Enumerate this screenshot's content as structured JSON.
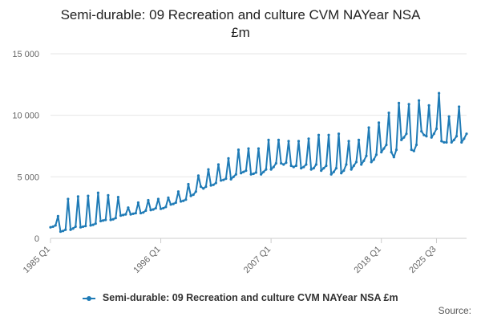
{
  "chart_data": {
    "type": "line",
    "title_lines": [
      "Semi-durable: 09 Recreation and culture CVM NAYear NSA",
      "£m"
    ],
    "xlabel": "",
    "ylabel": "",
    "ylim": [
      0,
      15000
    ],
    "y_ticks": [
      0,
      5000,
      10000,
      15000
    ],
    "y_tick_labels": [
      "0",
      "5 000",
      "10 000",
      "15 000"
    ],
    "x_tick_labels": [
      "1985 Q1",
      "1996 Q1",
      "2007 Q1",
      "2018 Q1",
      "2025 Q3"
    ],
    "x_tick_indices": [
      0,
      44,
      88,
      132,
      154
    ],
    "grid": "horizontal",
    "legend_position": "bottom",
    "series": [
      {
        "name": "Semi-durable: 09 Recreation and culture CVM NAYear NSA £m",
        "color": "#1f7bb6",
        "x_labels": [
          "1985 Q1",
          "1985 Q2",
          "1985 Q3",
          "1985 Q4",
          "1986 Q1",
          "1986 Q2",
          "1986 Q3",
          "1986 Q4",
          "1987 Q1",
          "1987 Q2",
          "1987 Q3",
          "1987 Q4",
          "1988 Q1",
          "1988 Q2",
          "1988 Q3",
          "1988 Q4",
          "1989 Q1",
          "1989 Q2",
          "1989 Q3",
          "1989 Q4",
          "1990 Q1",
          "1990 Q2",
          "1990 Q3",
          "1990 Q4",
          "1991 Q1",
          "1991 Q2",
          "1991 Q3",
          "1991 Q4",
          "1992 Q1",
          "1992 Q2",
          "1992 Q3",
          "1992 Q4",
          "1993 Q1",
          "1993 Q2",
          "1993 Q3",
          "1993 Q4",
          "1994 Q1",
          "1994 Q2",
          "1994 Q3",
          "1994 Q4",
          "1995 Q1",
          "1995 Q2",
          "1995 Q3",
          "1995 Q4",
          "1996 Q1",
          "1996 Q2",
          "1996 Q3",
          "1996 Q4",
          "1997 Q1",
          "1997 Q2",
          "1997 Q3",
          "1997 Q4",
          "1998 Q1",
          "1998 Q2",
          "1998 Q3",
          "1998 Q4",
          "1999 Q1",
          "1999 Q2",
          "1999 Q3",
          "1999 Q4",
          "2000 Q1",
          "2000 Q2",
          "2000 Q3",
          "2000 Q4",
          "2001 Q1",
          "2001 Q2",
          "2001 Q3",
          "2001 Q4",
          "2002 Q1",
          "2002 Q2",
          "2002 Q3",
          "2002 Q4",
          "2003 Q1",
          "2003 Q2",
          "2003 Q3",
          "2003 Q4",
          "2004 Q1",
          "2004 Q2",
          "2004 Q3",
          "2004 Q4",
          "2005 Q1",
          "2005 Q2",
          "2005 Q3",
          "2005 Q4",
          "2006 Q1",
          "2006 Q2",
          "2006 Q3",
          "2006 Q4",
          "2007 Q1",
          "2007 Q2",
          "2007 Q3",
          "2007 Q4",
          "2008 Q1",
          "2008 Q2",
          "2008 Q3",
          "2008 Q4",
          "2009 Q1",
          "2009 Q2",
          "2009 Q3",
          "2009 Q4",
          "2010 Q1",
          "2010 Q2",
          "2010 Q3",
          "2010 Q4",
          "2011 Q1",
          "2011 Q2",
          "2011 Q3",
          "2011 Q4",
          "2012 Q1",
          "2012 Q2",
          "2012 Q3",
          "2012 Q4",
          "2013 Q1",
          "2013 Q2",
          "2013 Q3",
          "2013 Q4",
          "2014 Q1",
          "2014 Q2",
          "2014 Q3",
          "2014 Q4",
          "2015 Q1",
          "2015 Q2",
          "2015 Q3",
          "2015 Q4",
          "2016 Q1",
          "2016 Q2",
          "2016 Q3",
          "2016 Q4",
          "2017 Q1",
          "2017 Q2",
          "2017 Q3",
          "2017 Q4",
          "2018 Q1",
          "2018 Q2",
          "2018 Q3",
          "2018 Q4",
          "2019 Q1",
          "2019 Q2",
          "2019 Q3",
          "2019 Q4",
          "2020 Q1",
          "2020 Q2",
          "2020 Q3",
          "2020 Q4",
          "2021 Q1",
          "2021 Q2",
          "2021 Q3",
          "2021 Q4",
          "2022 Q1",
          "2022 Q2",
          "2022 Q3",
          "2022 Q4",
          "2023 Q1",
          "2023 Q2",
          "2023 Q3",
          "2023 Q4",
          "2024 Q1",
          "2024 Q2",
          "2024 Q3",
          "2024 Q4",
          "2025 Q1",
          "2025 Q2",
          "2025 Q3"
        ],
        "values": [
          900,
          950,
          1050,
          1800,
          550,
          600,
          700,
          3200,
          700,
          800,
          950,
          3400,
          900,
          950,
          1000,
          3450,
          1050,
          1100,
          1200,
          3700,
          1400,
          1450,
          1500,
          3500,
          1500,
          1550,
          1650,
          3350,
          1850,
          1900,
          1950,
          2500,
          1950,
          2000,
          2050,
          2900,
          2050,
          2100,
          2250,
          3100,
          2300,
          2350,
          2450,
          3200,
          2400,
          2450,
          2550,
          3300,
          2750,
          2800,
          2900,
          3800,
          3000,
          3050,
          3150,
          4400,
          3450,
          3550,
          3800,
          5100,
          4200,
          4050,
          4200,
          5600,
          4300,
          4350,
          4500,
          6000,
          4700,
          4750,
          4850,
          6500,
          4800,
          5000,
          5200,
          7200,
          5300,
          5400,
          5500,
          7300,
          5200,
          5250,
          5350,
          7300,
          5200,
          5400,
          5600,
          8000,
          5600,
          5800,
          6100,
          8000,
          6100,
          6000,
          6150,
          7900,
          5900,
          5800,
          5900,
          7900,
          5700,
          5800,
          6000,
          8100,
          5600,
          5700,
          6000,
          8400,
          5500,
          5700,
          5900,
          8400,
          5200,
          5400,
          5700,
          8500,
          5300,
          5500,
          6000,
          7900,
          5600,
          5900,
          6200,
          8000,
          6000,
          6300,
          6700,
          9000,
          6200,
          6400,
          6800,
          9400,
          7000,
          7300,
          7600,
          10200,
          7000,
          6600,
          7200,
          11000,
          8000,
          8200,
          8500,
          10900,
          7200,
          7100,
          7600,
          11200,
          8700,
          8400,
          8300,
          10800,
          8200,
          8500,
          8900,
          11800,
          7900,
          7800,
          7800,
          9900,
          7800,
          8000,
          8300,
          10700,
          7800,
          8100,
          8500
        ]
      }
    ],
    "source_label": "Source:"
  }
}
